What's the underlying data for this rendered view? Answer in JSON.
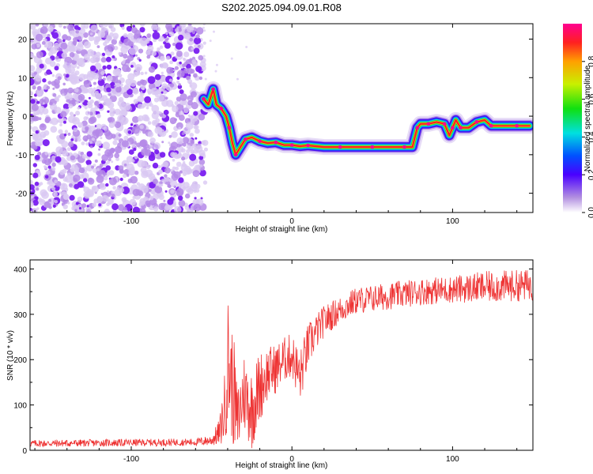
{
  "chart_data": [
    {
      "type": "heatmap",
      "title": "S202.2025.094.09.01.R08",
      "xlabel": "Height of straight line (km)",
      "ylabel": "Frequency (Hz)",
      "xlim": [
        -163,
        150
      ],
      "ylim": [
        -25,
        24
      ],
      "x_ticks": [
        -100,
        0,
        100
      ],
      "y_ticks": [
        20,
        10,
        0,
        -10,
        -20
      ],
      "colorbar": {
        "label": "Normalized spectral amplitude",
        "ticks": [
          "0.0",
          "0.2",
          "0.4",
          "0.6",
          "0.8"
        ],
        "tick_values": [
          0.0,
          0.2,
          0.4,
          0.6,
          0.8
        ],
        "range": [
          0,
          1
        ],
        "colormap": "rainbow (white-purple-blue-cyan-green-yellow-red-magenta)"
      },
      "noise_region": {
        "x_range": [
          -163,
          -55
        ],
        "y_range": [
          -25,
          24
        ],
        "color": "#8a2be2"
      },
      "signal_trace": [
        {
          "x": -55,
          "y": 4.5
        },
        {
          "x": -52,
          "y": 3
        },
        {
          "x": -49,
          "y": 7
        },
        {
          "x": -47,
          "y": 3
        },
        {
          "x": -44,
          "y": 2
        },
        {
          "x": -41,
          "y": 0
        },
        {
          "x": -39,
          "y": -3
        },
        {
          "x": -37,
          "y": -7
        },
        {
          "x": -35,
          "y": -10
        },
        {
          "x": -32,
          "y": -8
        },
        {
          "x": -29,
          "y": -6
        },
        {
          "x": -25,
          "y": -5.5
        },
        {
          "x": -20,
          "y": -6.5
        },
        {
          "x": -15,
          "y": -7
        },
        {
          "x": -10,
          "y": -6.8
        },
        {
          "x": -5,
          "y": -7.5
        },
        {
          "x": 0,
          "y": -7.5
        },
        {
          "x": 5,
          "y": -7.8
        },
        {
          "x": 10,
          "y": -7.6
        },
        {
          "x": 20,
          "y": -8
        },
        {
          "x": 30,
          "y": -8
        },
        {
          "x": 40,
          "y": -8
        },
        {
          "x": 50,
          "y": -8
        },
        {
          "x": 60,
          "y": -8
        },
        {
          "x": 70,
          "y": -8
        },
        {
          "x": 75,
          "y": -8
        },
        {
          "x": 78,
          "y": -3
        },
        {
          "x": 80,
          "y": -2
        },
        {
          "x": 85,
          "y": -2
        },
        {
          "x": 90,
          "y": -1.5
        },
        {
          "x": 95,
          "y": -2
        },
        {
          "x": 98,
          "y": -5
        },
        {
          "x": 100,
          "y": -3
        },
        {
          "x": 102,
          "y": -1
        },
        {
          "x": 105,
          "y": -3
        },
        {
          "x": 110,
          "y": -3
        },
        {
          "x": 115,
          "y": -1.5
        },
        {
          "x": 120,
          "y": -1
        },
        {
          "x": 124,
          "y": -2.5
        },
        {
          "x": 130,
          "y": -2.5
        },
        {
          "x": 140,
          "y": -2.5
        },
        {
          "x": 148,
          "y": -2.5
        }
      ]
    },
    {
      "type": "line",
      "xlabel": "Height of straight line (km)",
      "ylabel": "SNR (10 * v/v)",
      "xlim": [
        -163,
        150
      ],
      "ylim": [
        0,
        420
      ],
      "x_ticks": [
        -100,
        0,
        100
      ],
      "y_ticks": [
        0,
        100,
        200,
        300,
        400
      ],
      "color": "#ee3333",
      "envelope": {
        "x": [
          -163,
          -60,
          -50,
          -45,
          -42,
          -40,
          -38,
          -36,
          -34,
          -30,
          -25,
          -20,
          -15,
          -10,
          -5,
          0,
          5,
          10,
          15,
          20,
          30,
          40,
          60,
          80,
          100,
          120,
          150
        ],
        "y_mid": [
          15,
          18,
          22,
          40,
          90,
          200,
          160,
          120,
          60,
          130,
          90,
          140,
          170,
          180,
          200,
          210,
          160,
          230,
          260,
          285,
          310,
          330,
          340,
          350,
          355,
          360,
          365
        ],
        "y_amp": [
          8,
          8,
          12,
          30,
          80,
          150,
          130,
          120,
          80,
          90,
          90,
          80,
          60,
          55,
          50,
          50,
          60,
          50,
          40,
          35,
          30,
          30,
          30,
          30,
          30,
          35,
          35
        ]
      }
    }
  ]
}
